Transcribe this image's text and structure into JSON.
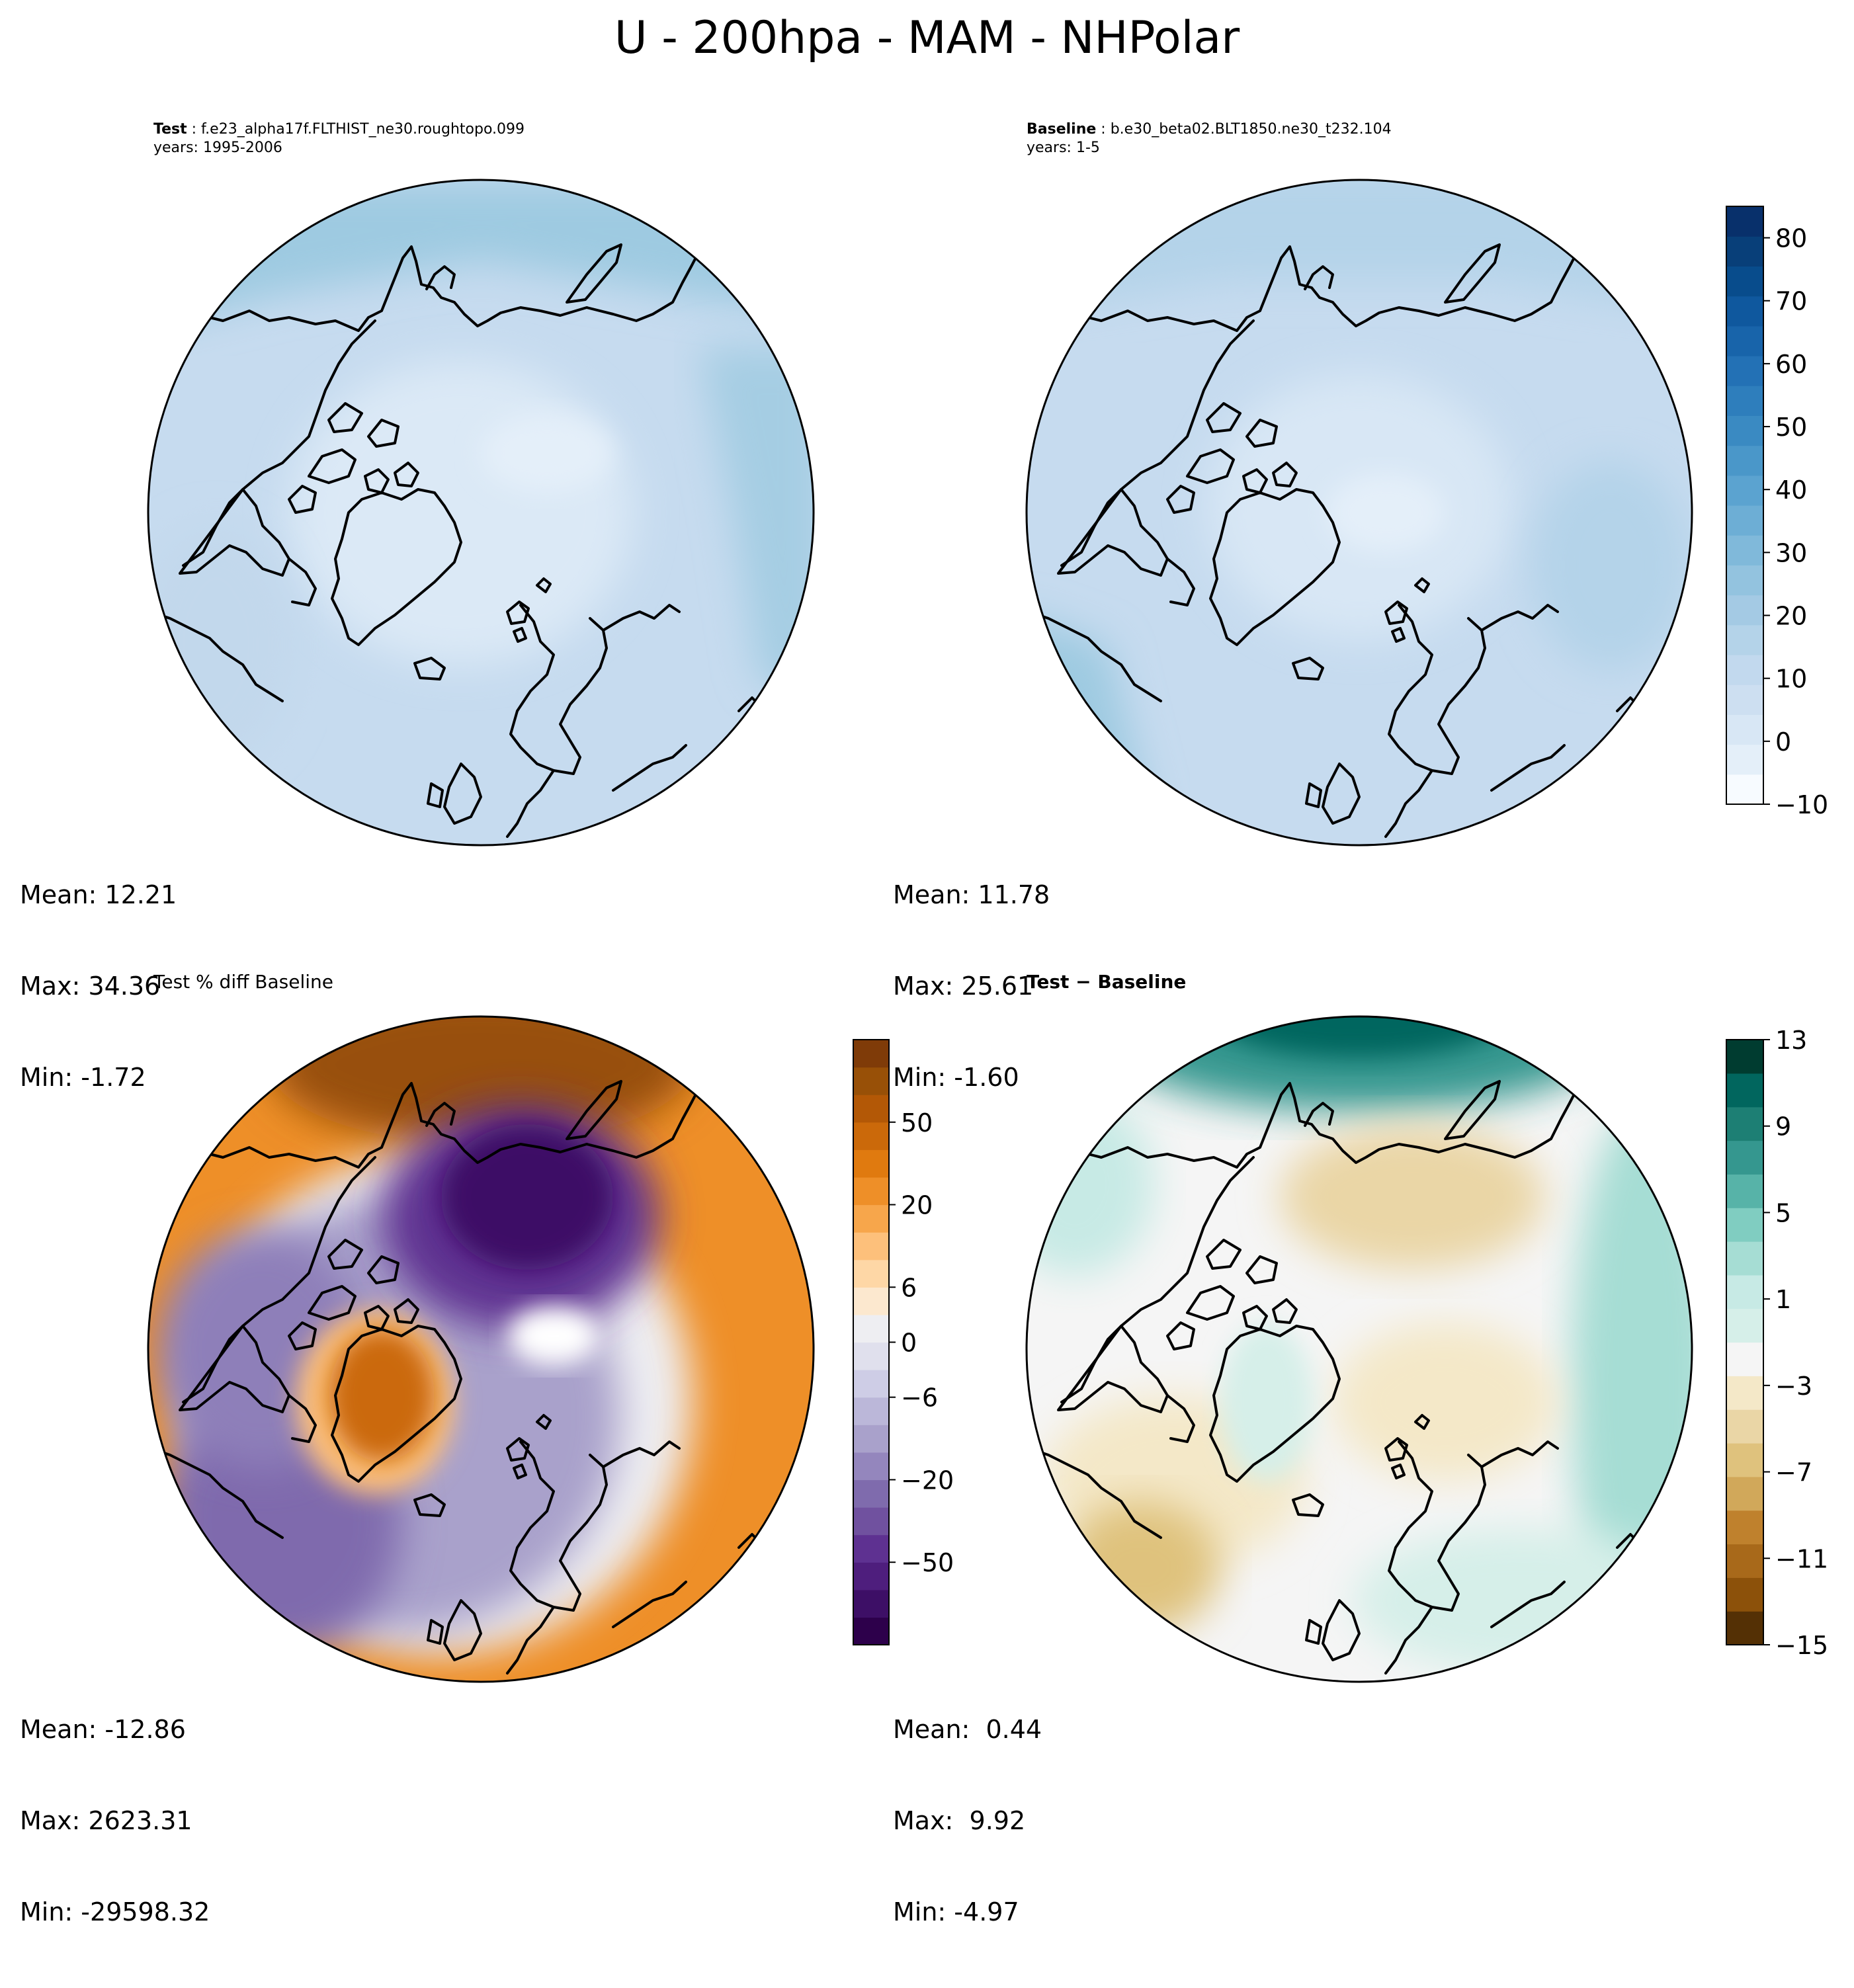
{
  "title": "U - 200hpa - MAM - NHPolar",
  "panels": {
    "test": {
      "label": "Test",
      "case": "f.e23_alpha17f.FLTHIST_ne30.roughtopo.099",
      "years": "years: 1995-2006",
      "stats": [
        "Mean: 12.21",
        "Max: 34.36",
        "Min: -1.72"
      ]
    },
    "baseline": {
      "label": "Baseline",
      "case": "b.e30_beta02.BLT1850.ne30_t232.104",
      "years": "years: 1-5",
      "stats": [
        "Mean: 11.78",
        "Max: 25.61",
        "Min: -1.60"
      ]
    },
    "pct_diff": {
      "title": "Test % diff Baseline",
      "stats": [
        "Mean: -12.86",
        "Max: 2623.31",
        "Min: -29598.32"
      ]
    },
    "diff": {
      "title_a": "Test",
      "title_b": "Baseline",
      "stats": [
        "Mean:  0.44",
        "Max:  9.92",
        "Min: -4.97"
      ]
    }
  },
  "chart_data": [
    {
      "type": "heatmap",
      "name": "test",
      "projection": "north polar stereographic",
      "mean": 12.21,
      "max": 34.36,
      "min": -1.72
    },
    {
      "type": "heatmap",
      "name": "baseline",
      "projection": "north polar stereographic",
      "mean": 11.78,
      "max": 25.61,
      "min": -1.6
    },
    {
      "type": "heatmap",
      "name": "pct_diff",
      "projection": "north polar stereographic",
      "mean": -12.86,
      "max": 2623.31,
      "min": -29598.32
    },
    {
      "type": "heatmap",
      "name": "diff",
      "projection": "north polar stereographic",
      "mean": 0.44,
      "max": 9.92,
      "min": -4.97
    }
  ],
  "colorbars": {
    "main": {
      "ticks": [
        "80",
        "70",
        "60",
        "50",
        "40",
        "30",
        "20",
        "10",
        "0",
        "−10"
      ],
      "range": [
        -10,
        85
      ],
      "colors": [
        "#f7fbff",
        "#e4eff9",
        "#d8e7f5",
        "#cddff1",
        "#c2d9ee",
        "#b4d3e9",
        "#a4cae4",
        "#93c3df",
        "#80b9da",
        "#6daed5",
        "#5ba3d0",
        "#4a97c9",
        "#3a8ac2",
        "#2e7ebc",
        "#2371b5",
        "#1864aa",
        "#0f589e",
        "#084c8c",
        "#083f79",
        "#08306b"
      ]
    },
    "pct_diff": {
      "ticks": [
        "50",
        "20",
        "6",
        "0",
        "−6",
        "−20",
        "−50"
      ],
      "colors": [
        "#2d004b",
        "#3d0f66",
        "#4e1e7d",
        "#5e3191",
        "#70519f",
        "#7f6bad",
        "#9486bd",
        "#a9a1cb",
        "#bbb7d9",
        "#cecde6",
        "#e0e0ed",
        "#eeeef2",
        "#fce8cf",
        "#fed7a6",
        "#fdc07b",
        "#f7a64b",
        "#ee8f28",
        "#e07a0f",
        "#cb690a",
        "#b35806",
        "#985007",
        "#7f3b08"
      ]
    },
    "diff": {
      "ticks": [
        "13",
        "9",
        "5",
        "1",
        "−3",
        "−7",
        "−11",
        "−15"
      ],
      "colors": [
        "#543005",
        "#8c510a",
        "#a8691a",
        "#bf812d",
        "#d1a85a",
        "#dfc27d",
        "#ead6a6",
        "#f4e8c8",
        "#f5f5f5",
        "#d6efe9",
        "#c7eae5",
        "#a6ddd4",
        "#80cdc1",
        "#57b3a8",
        "#35978f",
        "#1d7f74",
        "#01665e",
        "#003c30"
      ]
    }
  }
}
